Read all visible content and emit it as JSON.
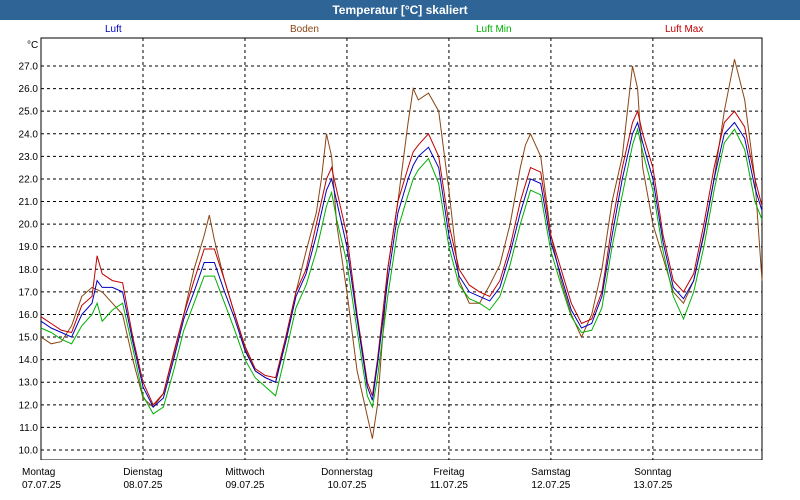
{
  "title": "Temperatur [°C] skaliert",
  "chart_data": {
    "type": "line",
    "title": "Temperatur [°C] skaliert",
    "ylabel": "°C",
    "ylim": [
      9.5,
      28.2
    ],
    "yticks": [
      10.0,
      11.0,
      12.0,
      13.0,
      14.0,
      15.0,
      16.0,
      17.0,
      18.0,
      19.0,
      20.0,
      21.0,
      22.0,
      23.0,
      24.0,
      25.0,
      26.0,
      27.0
    ],
    "xlim": [
      0,
      7.07
    ],
    "days": [
      {
        "weekday": "Montag",
        "date": "07.07.25"
      },
      {
        "weekday": "Dienstag",
        "date": "08.07.25"
      },
      {
        "weekday": "Mittwoch",
        "date": "09.07.25"
      },
      {
        "weekday": "Donnerstag",
        "date": "10.07.25"
      },
      {
        "weekday": "Freitag",
        "date": "11.07.25"
      },
      {
        "weekday": "Samstag",
        "date": "12.07.25"
      },
      {
        "weekday": "Sonntag",
        "date": "13.07.25"
      }
    ],
    "series": [
      {
        "name": "Boden",
        "color": "#8b4513",
        "points": [
          [
            0,
            15.0
          ],
          [
            0.1,
            14.7
          ],
          [
            0.2,
            14.8
          ],
          [
            0.3,
            15.5
          ],
          [
            0.4,
            16.8
          ],
          [
            0.5,
            17.2
          ],
          [
            0.6,
            17.0
          ],
          [
            0.7,
            16.5
          ],
          [
            0.8,
            16.0
          ],
          [
            0.9,
            14.0
          ],
          [
            1.0,
            12.3
          ],
          [
            1.1,
            11.9
          ],
          [
            1.2,
            12.5
          ],
          [
            1.3,
            14.2
          ],
          [
            1.4,
            16.0
          ],
          [
            1.5,
            18.0
          ],
          [
            1.6,
            19.5
          ],
          [
            1.65,
            20.4
          ],
          [
            1.7,
            19.3
          ],
          [
            1.8,
            17.5
          ],
          [
            1.9,
            16.0
          ],
          [
            2.0,
            14.5
          ],
          [
            2.1,
            13.5
          ],
          [
            2.2,
            13.2
          ],
          [
            2.3,
            13.0
          ],
          [
            2.4,
            15.0
          ],
          [
            2.5,
            17.0
          ],
          [
            2.6,
            18.8
          ],
          [
            2.7,
            20.5
          ],
          [
            2.75,
            22.0
          ],
          [
            2.8,
            24.0
          ],
          [
            2.85,
            23.0
          ],
          [
            2.9,
            20.0
          ],
          [
            3.0,
            17.0
          ],
          [
            3.1,
            13.5
          ],
          [
            3.2,
            11.5
          ],
          [
            3.25,
            10.5
          ],
          [
            3.3,
            12.0
          ],
          [
            3.35,
            15.0
          ],
          [
            3.4,
            18.0
          ],
          [
            3.5,
            21.0
          ],
          [
            3.6,
            24.5
          ],
          [
            3.65,
            26.0
          ],
          [
            3.7,
            25.5
          ],
          [
            3.8,
            25.8
          ],
          [
            3.9,
            25.0
          ],
          [
            4.0,
            21.5
          ],
          [
            4.1,
            17.5
          ],
          [
            4.2,
            16.5
          ],
          [
            4.3,
            16.5
          ],
          [
            4.4,
            17.3
          ],
          [
            4.5,
            18.2
          ],
          [
            4.6,
            20.0
          ],
          [
            4.7,
            22.5
          ],
          [
            4.75,
            23.5
          ],
          [
            4.8,
            24.0
          ],
          [
            4.9,
            23.0
          ],
          [
            5.0,
            19.5
          ],
          [
            5.1,
            17.5
          ],
          [
            5.2,
            16.0
          ],
          [
            5.3,
            15.0
          ],
          [
            5.4,
            16.0
          ],
          [
            5.5,
            18.0
          ],
          [
            5.6,
            21.0
          ],
          [
            5.7,
            23.0
          ],
          [
            5.75,
            25.0
          ],
          [
            5.8,
            27.0
          ],
          [
            5.85,
            26.0
          ],
          [
            5.9,
            22.5
          ],
          [
            6.0,
            20.0
          ],
          [
            6.1,
            18.5
          ],
          [
            6.2,
            17.0
          ],
          [
            6.3,
            16.5
          ],
          [
            6.4,
            17.5
          ],
          [
            6.5,
            19.5
          ],
          [
            6.6,
            22.0
          ],
          [
            6.7,
            25.0
          ],
          [
            6.8,
            27.3
          ],
          [
            6.9,
            25.5
          ],
          [
            7.0,
            22.0
          ],
          [
            7.07,
            17.5
          ]
        ]
      },
      {
        "name": "Luft Max",
        "color": "#c00000",
        "points": [
          [
            0,
            15.9
          ],
          [
            0.1,
            15.6
          ],
          [
            0.2,
            15.3
          ],
          [
            0.3,
            15.2
          ],
          [
            0.4,
            16.4
          ],
          [
            0.5,
            16.8
          ],
          [
            0.55,
            18.6
          ],
          [
            0.6,
            17.8
          ],
          [
            0.7,
            17.5
          ],
          [
            0.8,
            17.4
          ],
          [
            0.9,
            15.0
          ],
          [
            1.0,
            13.0
          ],
          [
            1.1,
            12.0
          ],
          [
            1.2,
            12.5
          ],
          [
            1.3,
            14.3
          ],
          [
            1.4,
            16.0
          ],
          [
            1.5,
            17.5
          ],
          [
            1.6,
            18.9
          ],
          [
            1.7,
            18.9
          ],
          [
            1.8,
            17.5
          ],
          [
            1.9,
            16.0
          ],
          [
            2.0,
            14.6
          ],
          [
            2.1,
            13.6
          ],
          [
            2.2,
            13.3
          ],
          [
            2.3,
            13.2
          ],
          [
            2.4,
            15.0
          ],
          [
            2.5,
            17.0
          ],
          [
            2.6,
            18.0
          ],
          [
            2.7,
            20.0
          ],
          [
            2.8,
            22.0
          ],
          [
            2.85,
            22.5
          ],
          [
            2.9,
            21.5
          ],
          [
            3.0,
            19.5
          ],
          [
            3.1,
            16.0
          ],
          [
            3.2,
            13.0
          ],
          [
            3.25,
            12.4
          ],
          [
            3.3,
            14.0
          ],
          [
            3.4,
            18.0
          ],
          [
            3.5,
            21.0
          ],
          [
            3.6,
            22.5
          ],
          [
            3.65,
            23.2
          ],
          [
            3.7,
            23.5
          ],
          [
            3.8,
            24.0
          ],
          [
            3.9,
            23.0
          ],
          [
            4.0,
            20.0
          ],
          [
            4.1,
            18.0
          ],
          [
            4.2,
            17.3
          ],
          [
            4.3,
            17.0
          ],
          [
            4.4,
            16.8
          ],
          [
            4.5,
            17.5
          ],
          [
            4.6,
            19.0
          ],
          [
            4.7,
            21.0
          ],
          [
            4.8,
            22.5
          ],
          [
            4.9,
            22.3
          ],
          [
            5.0,
            19.5
          ],
          [
            5.1,
            18.0
          ],
          [
            5.2,
            16.5
          ],
          [
            5.3,
            15.6
          ],
          [
            5.4,
            15.8
          ],
          [
            5.5,
            17.0
          ],
          [
            5.6,
            20.0
          ],
          [
            5.7,
            22.5
          ],
          [
            5.8,
            24.5
          ],
          [
            5.85,
            25.0
          ],
          [
            5.9,
            24.0
          ],
          [
            6.0,
            22.5
          ],
          [
            6.1,
            19.5
          ],
          [
            6.2,
            17.5
          ],
          [
            6.3,
            17.0
          ],
          [
            6.4,
            17.8
          ],
          [
            6.5,
            20.0
          ],
          [
            6.6,
            22.5
          ],
          [
            6.7,
            24.5
          ],
          [
            6.8,
            25.0
          ],
          [
            6.9,
            24.3
          ],
          [
            7.0,
            22.0
          ],
          [
            7.07,
            20.8
          ]
        ]
      },
      {
        "name": "Luft",
        "color": "#0000c0",
        "points": [
          [
            0,
            15.7
          ],
          [
            0.1,
            15.4
          ],
          [
            0.2,
            15.2
          ],
          [
            0.3,
            15.0
          ],
          [
            0.4,
            16.0
          ],
          [
            0.5,
            16.5
          ],
          [
            0.55,
            17.5
          ],
          [
            0.6,
            17.2
          ],
          [
            0.7,
            17.2
          ],
          [
            0.8,
            17.0
          ],
          [
            0.9,
            14.8
          ],
          [
            1.0,
            12.8
          ],
          [
            1.1,
            11.9
          ],
          [
            1.2,
            12.3
          ],
          [
            1.3,
            14.0
          ],
          [
            1.4,
            15.8
          ],
          [
            1.5,
            17.0
          ],
          [
            1.6,
            18.3
          ],
          [
            1.7,
            18.3
          ],
          [
            1.8,
            17.0
          ],
          [
            1.9,
            15.8
          ],
          [
            2.0,
            14.4
          ],
          [
            2.1,
            13.5
          ],
          [
            2.2,
            13.2
          ],
          [
            2.3,
            13.0
          ],
          [
            2.4,
            14.8
          ],
          [
            2.5,
            16.8
          ],
          [
            2.6,
            17.8
          ],
          [
            2.7,
            19.5
          ],
          [
            2.8,
            21.5
          ],
          [
            2.85,
            22.0
          ],
          [
            2.9,
            21.0
          ],
          [
            3.0,
            19.0
          ],
          [
            3.1,
            15.8
          ],
          [
            3.2,
            12.8
          ],
          [
            3.25,
            12.2
          ],
          [
            3.3,
            13.8
          ],
          [
            3.4,
            17.5
          ],
          [
            3.5,
            20.5
          ],
          [
            3.6,
            22.0
          ],
          [
            3.65,
            22.6
          ],
          [
            3.7,
            23.0
          ],
          [
            3.8,
            23.4
          ],
          [
            3.9,
            22.5
          ],
          [
            4.0,
            19.5
          ],
          [
            4.1,
            17.7
          ],
          [
            4.2,
            17.0
          ],
          [
            4.3,
            16.8
          ],
          [
            4.4,
            16.6
          ],
          [
            4.5,
            17.2
          ],
          [
            4.6,
            18.7
          ],
          [
            4.7,
            20.5
          ],
          [
            4.8,
            22.0
          ],
          [
            4.9,
            21.8
          ],
          [
            5.0,
            19.2
          ],
          [
            5.1,
            17.7
          ],
          [
            5.2,
            16.2
          ],
          [
            5.3,
            15.4
          ],
          [
            5.4,
            15.6
          ],
          [
            5.5,
            16.8
          ],
          [
            5.6,
            19.5
          ],
          [
            5.7,
            22.0
          ],
          [
            5.8,
            24.0
          ],
          [
            5.85,
            24.5
          ],
          [
            5.9,
            23.6
          ],
          [
            6.0,
            22.0
          ],
          [
            6.1,
            19.2
          ],
          [
            6.2,
            17.2
          ],
          [
            6.3,
            16.7
          ],
          [
            6.4,
            17.5
          ],
          [
            6.5,
            19.6
          ],
          [
            6.6,
            22.0
          ],
          [
            6.7,
            24.0
          ],
          [
            6.8,
            24.5
          ],
          [
            6.9,
            23.8
          ],
          [
            7.0,
            21.6
          ],
          [
            7.07,
            20.6
          ]
        ]
      },
      {
        "name": "Luft Min",
        "color": "#00b000",
        "points": [
          [
            0,
            15.4
          ],
          [
            0.1,
            15.2
          ],
          [
            0.2,
            14.9
          ],
          [
            0.3,
            14.7
          ],
          [
            0.4,
            15.5
          ],
          [
            0.5,
            16.0
          ],
          [
            0.55,
            16.5
          ],
          [
            0.6,
            15.7
          ],
          [
            0.7,
            16.2
          ],
          [
            0.8,
            16.5
          ],
          [
            0.9,
            14.5
          ],
          [
            1.0,
            12.4
          ],
          [
            1.1,
            11.6
          ],
          [
            1.2,
            11.9
          ],
          [
            1.3,
            13.5
          ],
          [
            1.4,
            15.3
          ],
          [
            1.5,
            16.5
          ],
          [
            1.6,
            17.7
          ],
          [
            1.7,
            17.7
          ],
          [
            1.8,
            16.5
          ],
          [
            1.9,
            15.3
          ],
          [
            2.0,
            14.0
          ],
          [
            2.1,
            13.2
          ],
          [
            2.2,
            12.8
          ],
          [
            2.3,
            12.4
          ],
          [
            2.4,
            14.3
          ],
          [
            2.5,
            16.3
          ],
          [
            2.6,
            17.3
          ],
          [
            2.7,
            18.8
          ],
          [
            2.8,
            20.8
          ],
          [
            2.85,
            21.4
          ],
          [
            2.9,
            20.2
          ],
          [
            3.0,
            18.3
          ],
          [
            3.1,
            15.3
          ],
          [
            3.2,
            12.4
          ],
          [
            3.25,
            11.9
          ],
          [
            3.3,
            13.2
          ],
          [
            3.4,
            16.8
          ],
          [
            3.5,
            19.8
          ],
          [
            3.6,
            21.3
          ],
          [
            3.65,
            22.0
          ],
          [
            3.7,
            22.4
          ],
          [
            3.8,
            22.9
          ],
          [
            3.9,
            21.8
          ],
          [
            4.0,
            19.0
          ],
          [
            4.1,
            17.3
          ],
          [
            4.2,
            16.7
          ],
          [
            4.3,
            16.5
          ],
          [
            4.4,
            16.2
          ],
          [
            4.5,
            16.8
          ],
          [
            4.6,
            18.2
          ],
          [
            4.7,
            20.0
          ],
          [
            4.8,
            21.5
          ],
          [
            4.9,
            21.3
          ],
          [
            5.0,
            18.8
          ],
          [
            5.1,
            17.3
          ],
          [
            5.2,
            15.9
          ],
          [
            5.3,
            15.2
          ],
          [
            5.4,
            15.3
          ],
          [
            5.5,
            16.3
          ],
          [
            5.6,
            19.0
          ],
          [
            5.7,
            21.3
          ],
          [
            5.8,
            23.5
          ],
          [
            5.85,
            24.2
          ],
          [
            5.9,
            23.2
          ],
          [
            6.0,
            21.5
          ],
          [
            6.1,
            18.8
          ],
          [
            6.2,
            16.8
          ],
          [
            6.3,
            15.8
          ],
          [
            6.4,
            17.0
          ],
          [
            6.5,
            19.0
          ],
          [
            6.6,
            21.5
          ],
          [
            6.7,
            23.6
          ],
          [
            6.8,
            24.2
          ],
          [
            6.9,
            23.3
          ],
          [
            7.0,
            21.0
          ],
          [
            7.07,
            20.2
          ]
        ]
      }
    ]
  }
}
